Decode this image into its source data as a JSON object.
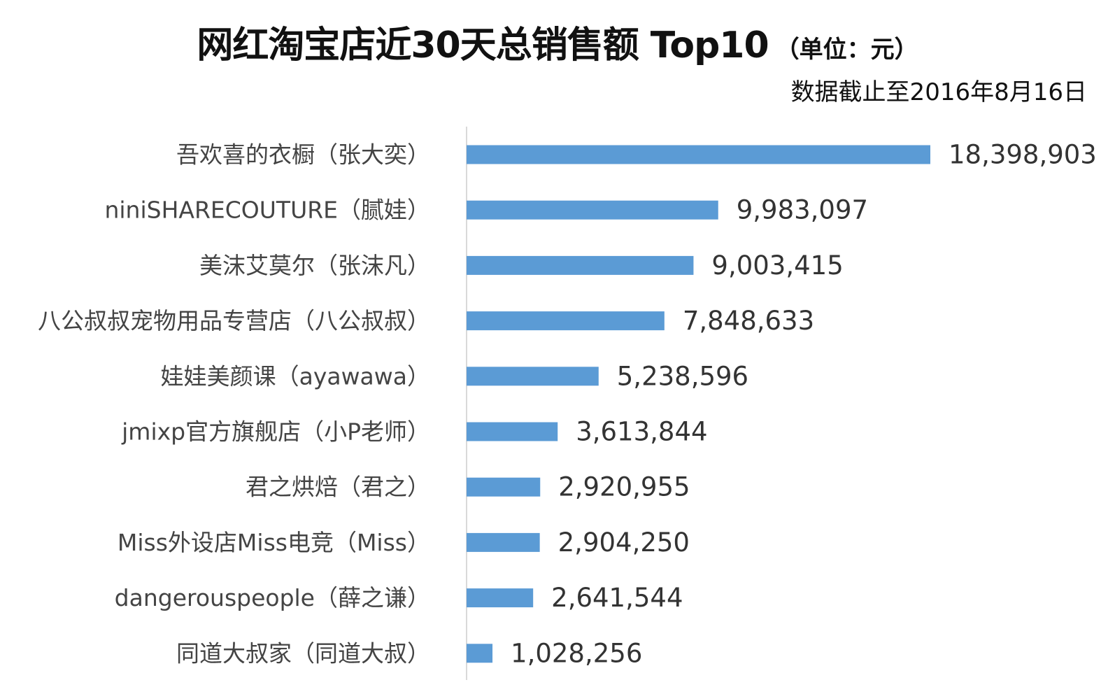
{
  "chart_data": {
    "type": "bar",
    "orientation": "horizontal",
    "title": "网红淘宝店近30天总销售额 Top10",
    "title_unit": "（单位：元）",
    "subtitle": "数据截止至2016年8月16日",
    "categories": [
      "吾欢喜的衣橱（张大奕）",
      "niniSHARECOUTURE（腻娃）",
      "美沫艾莫尔（张沫凡）",
      "八公叔叔宠物用品专营店（八公叔叔）",
      "娃娃美颜课（ayawawa）",
      "jmixp官方旗舰店（小P老师）",
      "君之烘焙（君之）",
      "Miss外设店Miss电竞（Miss）",
      "dangerouspeople（薛之谦）",
      "同道大叔家（同道大叔）"
    ],
    "values": [
      18398903,
      9983097,
      9003415,
      7848633,
      5238596,
      3613844,
      2920955,
      2904250,
      2641544,
      1028256
    ],
    "value_labels": [
      "18,398,903",
      "9,983,097",
      "9,003,415",
      "7,848,633",
      "5,238,596",
      "3,613,844",
      "2,920,955",
      "2,904,250",
      "2,641,544",
      "1,028,256"
    ],
    "xlim": [
      0,
      18398903
    ],
    "grid": false,
    "legend": "none",
    "bar_color": "#5b9bd5"
  }
}
